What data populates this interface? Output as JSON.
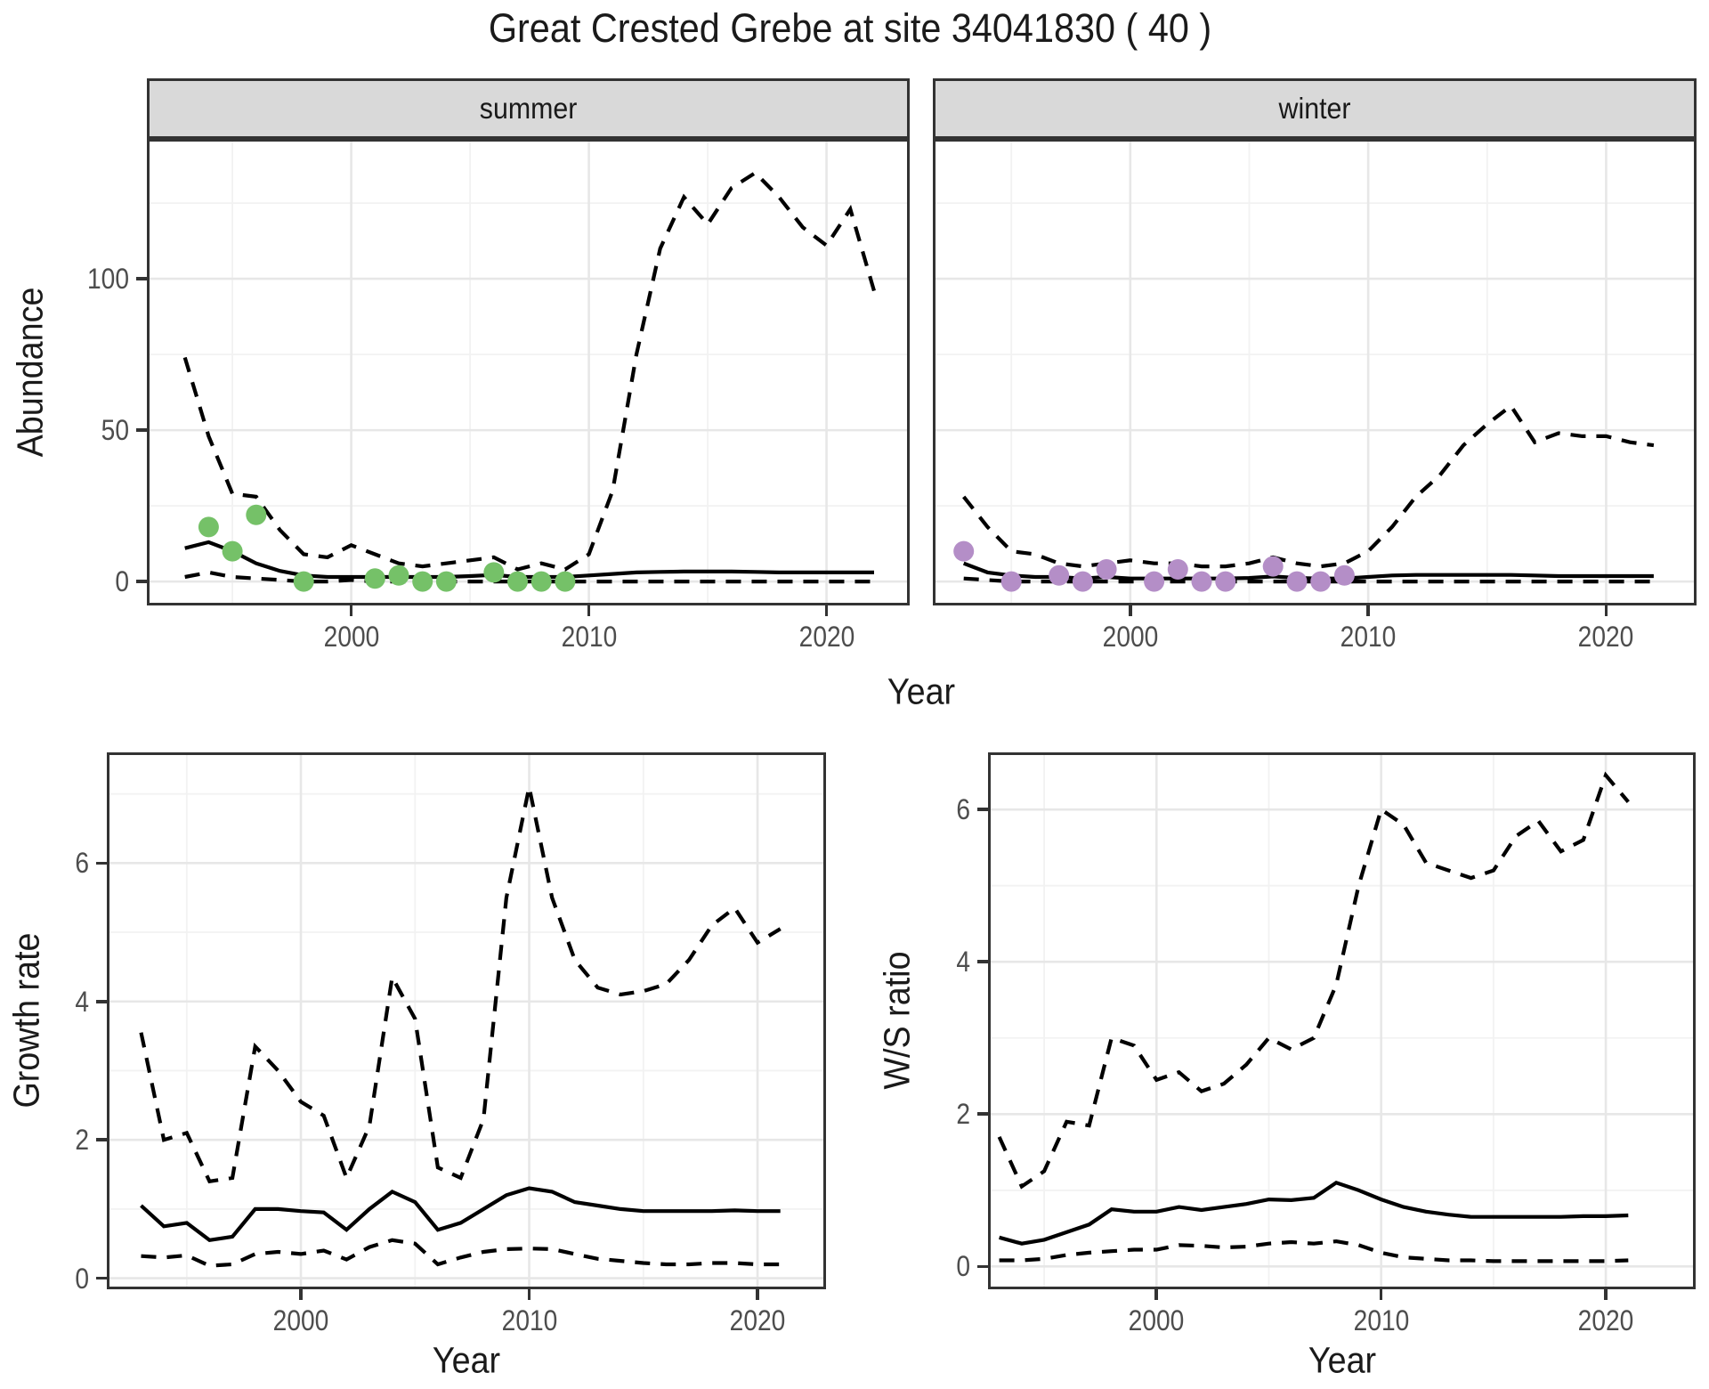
{
  "title": "Great Crested Grebe at site 34041830 ( 40 )",
  "facets": {
    "summer": "summer",
    "winter": "winter"
  },
  "axis_labels": {
    "x_top": "Year",
    "x_growth": "Year",
    "x_ws": "Year",
    "y_top": "Abundance",
    "y_growth": "Growth rate",
    "y_ws": "W/S ratio"
  },
  "colors": {
    "observed_summer": "#75C168",
    "observed_winter": "#B48EC7",
    "data_line": "#000000",
    "grid_major": "#E7E7E7",
    "grid_minor": "#F2F2F2",
    "panel_border": "#333333",
    "strip_bg": "#D9D9D9",
    "tick_text": "#4D4D4D",
    "text": "#1A1A1A"
  },
  "chart_data": [
    {
      "id": "summer",
      "type": "line",
      "facet": "summer",
      "xlabel": "Year",
      "ylabel": "Abundance",
      "x_domain": [
        1991.4,
        2023.5
      ],
      "y_domain": [
        -7.9,
        146.2
      ],
      "x_ticks": [
        2000,
        2010,
        2020
      ],
      "x_minor": [
        1995,
        2005,
        2015
      ],
      "y_ticks": [
        0,
        50,
        100
      ],
      "y_minor": [
        25,
        75,
        125
      ],
      "show_y_labels": true,
      "x": [
        1993,
        1994,
        1995,
        1996,
        1997,
        1998,
        1999,
        2000,
        2001,
        2002,
        2003,
        2004,
        2005,
        2006,
        2007,
        2008,
        2009,
        2010,
        2011,
        2012,
        2013,
        2014,
        2015,
        2016,
        2017,
        2018,
        2019,
        2020,
        2021,
        2022
      ],
      "series": [
        {
          "name": "median",
          "style": "solid",
          "values": [
            11,
            13,
            10,
            6,
            3.5,
            2,
            1.5,
            1.5,
            1.5,
            1.5,
            1.5,
            1.5,
            1.8,
            2.2,
            1.5,
            1.5,
            1.5,
            2,
            2.5,
            3,
            3.2,
            3.3,
            3.3,
            3.3,
            3.2,
            3,
            3,
            3,
            3,
            3
          ]
        },
        {
          "name": "upper 95% CI",
          "style": "dashed",
          "values": [
            74,
            48,
            29,
            28,
            17,
            9,
            8,
            12,
            9,
            6,
            5,
            6,
            7,
            8,
            4,
            6,
            4,
            9,
            30,
            75,
            110,
            127,
            118,
            130,
            135,
            127,
            117,
            111,
            123,
            96
          ]
        },
        {
          "name": "lower 95% CI",
          "style": "dashed",
          "values": [
            1.5,
            3,
            1.5,
            1,
            0.5,
            0,
            0,
            0.5,
            0,
            0,
            0,
            0,
            0,
            0,
            0,
            0,
            0,
            0,
            0,
            0,
            0,
            0,
            0,
            0,
            0,
            0,
            0,
            0,
            0,
            0
          ]
        }
      ],
      "observed": {
        "name": "observed summer counts",
        "color": "#75C168",
        "points": [
          [
            1994,
            18
          ],
          [
            1995,
            10
          ],
          [
            1996,
            22
          ],
          [
            1998,
            0
          ],
          [
            2001,
            1
          ],
          [
            2002,
            2
          ],
          [
            2003,
            0
          ],
          [
            2004,
            0
          ],
          [
            2006,
            3
          ],
          [
            2007,
            0
          ],
          [
            2008,
            0
          ],
          [
            2009,
            0
          ]
        ]
      }
    },
    {
      "id": "winter",
      "type": "line",
      "facet": "winter",
      "xlabel": "Year",
      "ylabel": "Abundance",
      "x_domain": [
        1991.7,
        2023.8
      ],
      "y_domain": [
        -7.9,
        146.2
      ],
      "x_ticks": [
        2000,
        2010,
        2020
      ],
      "x_minor": [
        1995,
        2005,
        2015
      ],
      "y_ticks": [
        0,
        50,
        100
      ],
      "y_minor": [
        25,
        75,
        125
      ],
      "show_y_labels": false,
      "x": [
        1993,
        1994,
        1995,
        1996,
        1997,
        1998,
        1999,
        2000,
        2001,
        2002,
        2003,
        2004,
        2005,
        2006,
        2007,
        2008,
        2009,
        2010,
        2011,
        2012,
        2013,
        2014,
        2015,
        2016,
        2017,
        2018,
        2019,
        2020,
        2021,
        2022
      ],
      "series": [
        {
          "name": "median",
          "style": "solid",
          "values": [
            6,
            3,
            2,
            1.5,
            1.5,
            1,
            1.5,
            1,
            1,
            1,
            1,
            1,
            1.2,
            1.7,
            1.2,
            1,
            1,
            1.5,
            2,
            2.2,
            2.2,
            2.2,
            2.2,
            2.2,
            2,
            1.8,
            1.8,
            1.8,
            1.8,
            1.8
          ]
        },
        {
          "name": "upper 95% CI",
          "style": "dashed",
          "values": [
            28,
            18,
            10,
            9,
            6,
            5,
            6,
            7,
            6,
            6,
            5,
            5,
            6,
            8,
            6,
            5,
            6,
            10,
            18,
            28,
            35,
            45,
            52,
            58,
            46,
            49,
            48,
            48,
            46,
            45
          ]
        },
        {
          "name": "lower 95% CI",
          "style": "dashed",
          "values": [
            1,
            0.5,
            0,
            0,
            0,
            0,
            0,
            0,
            0,
            0,
            0,
            0,
            0,
            0,
            0,
            0,
            0,
            0,
            0,
            0,
            0,
            0,
            0,
            0,
            0,
            0,
            0,
            0,
            0,
            0
          ]
        }
      ],
      "observed": {
        "name": "observed winter counts",
        "color": "#B48EC7",
        "points": [
          [
            1993,
            10
          ],
          [
            1995,
            0
          ],
          [
            1997,
            2
          ],
          [
            1998,
            0
          ],
          [
            1999,
            4
          ],
          [
            2001,
            0
          ],
          [
            2002,
            4
          ],
          [
            2003,
            0
          ],
          [
            2004,
            0
          ],
          [
            2006,
            5
          ],
          [
            2007,
            0
          ],
          [
            2008,
            0
          ],
          [
            2009,
            2
          ]
        ]
      }
    },
    {
      "id": "growth",
      "type": "line",
      "facet": null,
      "xlabel": "Year",
      "ylabel": "Growth rate",
      "x_domain": [
        1991.5,
        2023
      ],
      "y_domain": [
        -0.16,
        7.6
      ],
      "x_ticks": [
        2000,
        2010,
        2020
      ],
      "x_minor": [
        1995,
        2005,
        2015
      ],
      "y_ticks": [
        0,
        2,
        4,
        6
      ],
      "y_minor": [
        1,
        3,
        5,
        7
      ],
      "show_y_labels": true,
      "x": [
        1993,
        1994,
        1995,
        1996,
        1997,
        1998,
        1999,
        2000,
        2001,
        2002,
        2003,
        2004,
        2005,
        2006,
        2007,
        2008,
        2009,
        2010,
        2011,
        2012,
        2013,
        2014,
        2015,
        2016,
        2017,
        2018,
        2019,
        2020,
        2021
      ],
      "series": [
        {
          "name": "median",
          "style": "solid",
          "values": [
            1.05,
            0.75,
            0.8,
            0.55,
            0.6,
            1.0,
            1.0,
            0.97,
            0.95,
            0.7,
            1.0,
            1.25,
            1.1,
            0.7,
            0.8,
            1.0,
            1.2,
            1.3,
            1.25,
            1.1,
            1.05,
            1.0,
            0.97,
            0.97,
            0.97,
            0.97,
            0.98,
            0.97,
            0.97
          ]
        },
        {
          "name": "upper 95% CI",
          "style": "dashed",
          "values": [
            3.55,
            2.0,
            2.1,
            1.4,
            1.45,
            3.35,
            3.0,
            2.55,
            2.35,
            1.45,
            2.2,
            4.35,
            3.75,
            1.6,
            1.45,
            2.3,
            5.5,
            7.1,
            5.5,
            4.6,
            4.2,
            4.1,
            4.15,
            4.25,
            4.6,
            5.1,
            5.35,
            4.85,
            5.05
          ]
        },
        {
          "name": "lower 95% CI",
          "style": "dashed",
          "values": [
            0.32,
            0.3,
            0.33,
            0.18,
            0.2,
            0.35,
            0.38,
            0.35,
            0.4,
            0.27,
            0.45,
            0.55,
            0.5,
            0.2,
            0.3,
            0.38,
            0.42,
            0.43,
            0.42,
            0.35,
            0.28,
            0.25,
            0.22,
            0.2,
            0.2,
            0.22,
            0.22,
            0.2,
            0.2
          ]
        }
      ],
      "observed": null
    },
    {
      "id": "ws",
      "type": "line",
      "facet": null,
      "xlabel": "Year",
      "ylabel": "W/S ratio",
      "x_domain": [
        1992.5,
        2024
      ],
      "y_domain": [
        -0.3,
        6.75
      ],
      "x_ticks": [
        2000,
        2010,
        2020
      ],
      "x_minor": [
        1995,
        2005,
        2015
      ],
      "y_ticks": [
        0,
        2,
        4,
        6
      ],
      "y_minor": [
        1,
        3,
        5
      ],
      "show_y_labels": true,
      "x": [
        1993,
        1994,
        1995,
        1996,
        1997,
        1998,
        1999,
        2000,
        2001,
        2002,
        2003,
        2004,
        2005,
        2006,
        2007,
        2008,
        2009,
        2010,
        2011,
        2012,
        2013,
        2014,
        2015,
        2016,
        2017,
        2018,
        2019,
        2020,
        2021
      ],
      "series": [
        {
          "name": "median",
          "style": "solid",
          "values": [
            0.38,
            0.3,
            0.35,
            0.45,
            0.55,
            0.75,
            0.72,
            0.72,
            0.78,
            0.74,
            0.78,
            0.82,
            0.88,
            0.87,
            0.9,
            1.1,
            1.0,
            0.88,
            0.78,
            0.72,
            0.68,
            0.65,
            0.65,
            0.65,
            0.65,
            0.65,
            0.66,
            0.66,
            0.67
          ]
        },
        {
          "name": "upper 95% CI",
          "style": "dashed",
          "values": [
            1.7,
            1.05,
            1.25,
            1.9,
            1.85,
            3.0,
            2.9,
            2.45,
            2.55,
            2.3,
            2.4,
            2.65,
            3.0,
            2.85,
            3.0,
            3.7,
            5.0,
            6.0,
            5.8,
            5.3,
            5.2,
            5.1,
            5.2,
            5.65,
            5.85,
            5.45,
            5.6,
            6.45,
            6.1
          ]
        },
        {
          "name": "lower 95% CI",
          "style": "dashed",
          "values": [
            0.08,
            0.08,
            0.1,
            0.15,
            0.18,
            0.2,
            0.22,
            0.22,
            0.28,
            0.27,
            0.25,
            0.26,
            0.3,
            0.32,
            0.3,
            0.33,
            0.28,
            0.18,
            0.12,
            0.1,
            0.08,
            0.08,
            0.07,
            0.07,
            0.07,
            0.07,
            0.07,
            0.07,
            0.08
          ]
        }
      ],
      "observed": null
    }
  ]
}
